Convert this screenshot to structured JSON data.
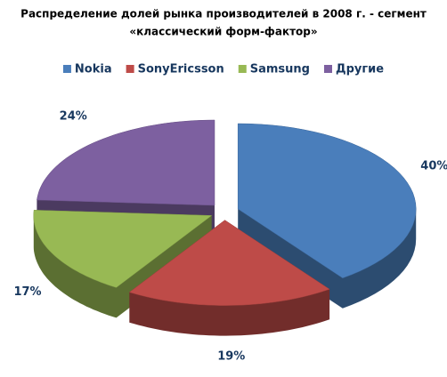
{
  "chart_data": {
    "type": "pie3d",
    "title": [
      "Распределение долей рынка производителей в 2008 г. - сегмент",
      "«классический форм-фактор»"
    ],
    "categories": [
      "Nokia",
      "SonyEricsson",
      "Samsung",
      "Другие"
    ],
    "values": [
      40,
      19,
      17,
      24
    ],
    "value_labels": [
      "40%",
      "19%",
      "17%",
      "24%"
    ],
    "colors": [
      "#4a7ebb",
      "#be4b48",
      "#98b954",
      "#7d60a0"
    ],
    "legend": "top"
  }
}
